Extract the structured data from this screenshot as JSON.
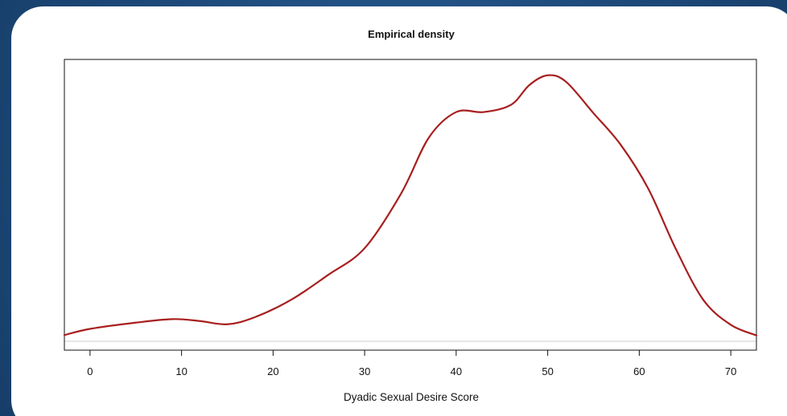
{
  "colors": {
    "background": "#1e4b7c",
    "card": "#ffffff",
    "curve": "#a81e1e",
    "axis": "#111111",
    "baseline": "#cfcfcf"
  },
  "chart_data": {
    "type": "line",
    "title": "Empirical density",
    "xlabel": "Dyadic Sexual Desire Score",
    "ylabel": "",
    "xlim": [
      -2.8,
      72.8
    ],
    "ylim": [
      0,
      1
    ],
    "x_ticks": [
      0,
      10,
      20,
      30,
      40,
      50,
      60,
      70
    ],
    "x_tick_labels": [
      "0",
      "10",
      "20",
      "30",
      "40",
      "50",
      "60",
      "70"
    ],
    "y_ticks_labeled": false,
    "grid": false,
    "legend": "none",
    "series": [
      {
        "x": [
          -2.8,
          0,
          5,
          9,
          12,
          15,
          18,
          22,
          26,
          30,
          34,
          37,
          40,
          43,
          46,
          48,
          50,
          52,
          55,
          58,
          61,
          64,
          67,
          70,
          72.8
        ],
        "y": [
          0.023,
          0.046,
          0.069,
          0.082,
          0.075,
          0.063,
          0.089,
          0.154,
          0.245,
          0.344,
          0.547,
          0.752,
          0.847,
          0.847,
          0.874,
          0.947,
          0.983,
          0.959,
          0.843,
          0.725,
          0.563,
          0.341,
          0.153,
          0.061,
          0.022
        ]
      }
    ]
  }
}
